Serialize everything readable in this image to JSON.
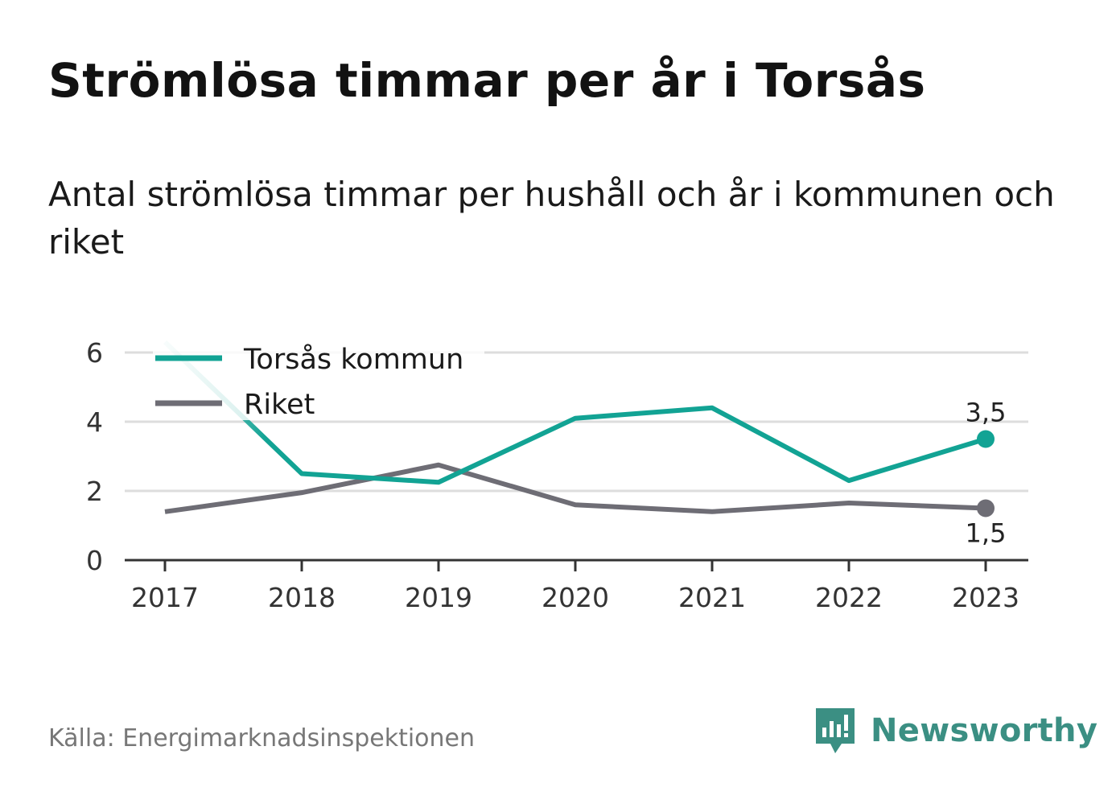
{
  "title": "Strömlösa timmar per år i Torsås",
  "subtitle": "Antal strömlösa timmar per hushåll och år i kommunen och riket",
  "source": "Källa: Energimarknadsinspektionen",
  "brand": "Newsworthy",
  "colors": {
    "torsas": "#12a394",
    "riket": "#6e6d75",
    "grid": "#dddddd",
    "axis": "#333333",
    "brand": "#3b8f83"
  },
  "chart_data": {
    "type": "line",
    "x": [
      "2017",
      "2018",
      "2019",
      "2020",
      "2021",
      "2022",
      "2023"
    ],
    "ylim": [
      0,
      6
    ],
    "yticks": [
      "0",
      "2",
      "4",
      "6"
    ],
    "grid": true,
    "legend": "top-left",
    "series": [
      {
        "name": "Torsås kommun",
        "values": [
          6.3,
          2.5,
          2.25,
          4.1,
          4.4,
          2.3,
          3.5
        ],
        "end_label": "3,5"
      },
      {
        "name": "Riket",
        "values": [
          1.4,
          1.95,
          2.75,
          1.6,
          1.4,
          1.65,
          1.5
        ],
        "end_label": "1,5"
      }
    ]
  }
}
